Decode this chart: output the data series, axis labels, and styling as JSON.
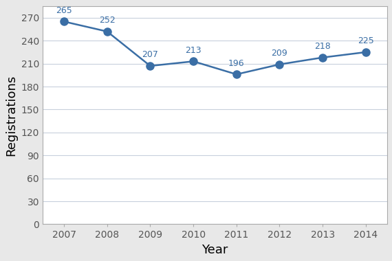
{
  "years": [
    2007,
    2008,
    2009,
    2010,
    2011,
    2012,
    2013,
    2014
  ],
  "values": [
    265,
    252,
    207,
    213,
    196,
    209,
    218,
    225
  ],
  "line_color": "#3A6EA5",
  "marker_color": "#3A6EA5",
  "xlabel": "Year",
  "ylabel": "Registrations",
  "ylim": [
    0,
    285
  ],
  "ytick_step": 30,
  "background_color": "#e8e8e8",
  "plot_bg_color": "#ffffff",
  "grid_color": "#c8d0dc",
  "label_fontsize": 10,
  "axis_label_fontsize": 13,
  "annotation_fontsize": 9,
  "marker_size": 8,
  "line_width": 1.8,
  "spine_color": "#aaaaaa",
  "tick_color": "#555555"
}
